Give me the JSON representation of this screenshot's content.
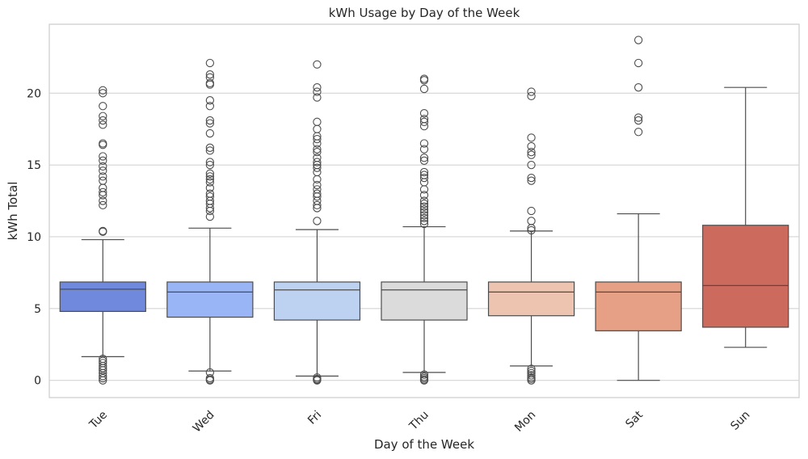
{
  "chart_data": {
    "type": "box",
    "title": "kWh Usage by Day of the Week",
    "xlabel": "Day of the Week",
    "ylabel": "kWh Total",
    "ylim": [
      -1.2,
      24.8
    ],
    "yticks": [
      0,
      5,
      10,
      15,
      20
    ],
    "grid": "horizontal",
    "categories": [
      "Tue",
      "Wed",
      "Fri",
      "Thu",
      "Mon",
      "Sat",
      "Sun"
    ],
    "colors": [
      "#7089dd",
      "#9ab5f5",
      "#bdd1f1",
      "#dbdbdb",
      "#ecc4af",
      "#e5a085",
      "#cc6a5e"
    ],
    "boxes": [
      {
        "label": "Tue",
        "whisker_low": 1.65,
        "q1": 4.8,
        "median": 6.35,
        "q3": 6.85,
        "whisker_high": 9.8,
        "outliers_high": [
          20.2,
          20.0,
          19.1,
          18.4,
          18.1,
          17.8,
          16.5,
          16.4,
          15.6,
          15.3,
          14.9,
          14.6,
          14.2,
          13.9,
          13.4,
          13.1,
          12.9,
          12.5,
          12.2,
          10.4,
          10.35
        ],
        "outliers_low": [
          1.5,
          1.35,
          1.2,
          1.0,
          0.85,
          0.7,
          0.5,
          0.3,
          0.15,
          0.0
        ]
      },
      {
        "label": "Wed",
        "whisker_low": 0.65,
        "q1": 4.4,
        "median": 6.15,
        "q3": 6.85,
        "whisker_high": 10.6,
        "outliers_high": [
          22.1,
          21.3,
          21.1,
          20.7,
          20.6,
          19.5,
          19.1,
          18.1,
          17.9,
          17.2,
          16.2,
          16.0,
          15.2,
          15.0,
          14.4,
          14.2,
          14.0,
          13.8,
          13.4,
          13.0,
          12.8,
          12.5,
          12.3,
          12.0,
          11.8,
          11.4
        ],
        "outliers_low": [
          0.55,
          0.15,
          0.05,
          0.0
        ]
      },
      {
        "label": "Fri",
        "whisker_low": 0.3,
        "q1": 4.2,
        "median": 6.3,
        "q3": 6.85,
        "whisker_high": 10.5,
        "outliers_high": [
          22.0,
          20.4,
          20.1,
          19.7,
          18.0,
          17.5,
          17.0,
          16.8,
          16.5,
          16.1,
          15.9,
          15.5,
          15.2,
          15.0,
          14.8,
          14.5,
          14.0,
          13.6,
          13.3,
          13.0,
          12.8,
          12.5,
          12.2,
          12.0,
          11.1
        ],
        "outliers_low": [
          0.2,
          0.1,
          0.05,
          0.0
        ]
      },
      {
        "label": "Thu",
        "whisker_low": 0.55,
        "q1": 4.2,
        "median": 6.3,
        "q3": 6.85,
        "whisker_high": 10.7,
        "outliers_high": [
          21.0,
          20.9,
          20.3,
          18.6,
          18.2,
          18.0,
          17.7,
          16.5,
          16.1,
          15.5,
          15.3,
          14.5,
          14.3,
          14.1,
          13.8,
          13.3,
          12.9,
          12.5,
          12.3,
          12.1,
          11.9,
          11.7,
          11.5,
          11.3,
          11.1,
          10.9
        ],
        "outliers_low": [
          0.4,
          0.25,
          0.15,
          0.05,
          0.0
        ]
      },
      {
        "label": "Mon",
        "whisker_low": 1.0,
        "q1": 4.5,
        "median": 6.15,
        "q3": 6.85,
        "whisker_high": 10.4,
        "outliers_high": [
          20.1,
          19.8,
          16.9,
          16.3,
          15.9,
          15.7,
          15.0,
          14.1,
          13.9,
          11.8,
          11.1,
          10.6,
          10.45
        ],
        "outliers_low": [
          0.8,
          0.65,
          0.5,
          0.35,
          0.2,
          0.1,
          0.0
        ]
      },
      {
        "label": "Sat",
        "whisker_low": 0.0,
        "q1": 3.45,
        "median": 6.15,
        "q3": 6.85,
        "whisker_high": 11.6,
        "outliers_high": [
          23.7,
          22.1,
          20.4,
          18.3,
          18.1,
          17.3
        ],
        "outliers_low": []
      },
      {
        "label": "Sun",
        "whisker_low": 2.3,
        "q1": 3.7,
        "median": 6.6,
        "q3": 10.8,
        "whisker_high": 20.4,
        "outliers_high": [],
        "outliers_low": []
      }
    ]
  }
}
